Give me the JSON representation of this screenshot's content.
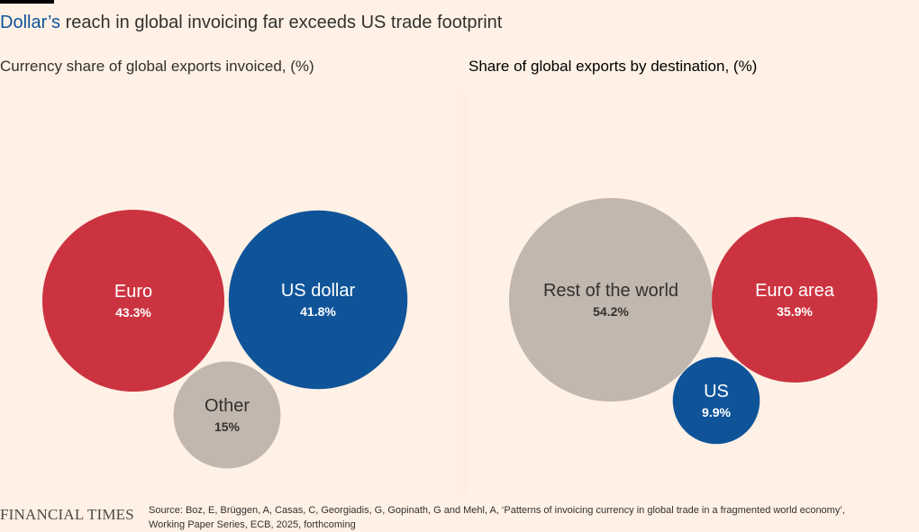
{
  "header": {
    "title_accent": "Dollar’s",
    "title_rest": " reach in global invoicing far exceeds US trade footprint"
  },
  "colors": {
    "background": "#fff1e5",
    "accent_blue": "#0f5499",
    "euro_red": "#cc3340",
    "other_grey": "#c1b7ae"
  },
  "chart_data": [
    {
      "type": "bubble",
      "title": "Currency share of global exports invoiced, (%)",
      "unit": "%",
      "series": [
        {
          "name": "Euro",
          "value": 43.3,
          "label": "43.3%",
          "color": "#cc3340"
        },
        {
          "name": "US dollar",
          "value": 41.8,
          "label": "41.8%",
          "color": "#0f5499"
        },
        {
          "name": "Other",
          "value": 15,
          "label": "15%",
          "color": "#c1b7ae"
        }
      ]
    },
    {
      "type": "bubble",
      "title": "Share of global exports by destination, (%)",
      "unit": "%",
      "series": [
        {
          "name": "Rest of the world",
          "value": 54.2,
          "label": "54.2%",
          "color": "#c1b7ae"
        },
        {
          "name": "Euro area",
          "value": 35.9,
          "label": "35.9%",
          "color": "#cc3340"
        },
        {
          "name": "US",
          "value": 9.9,
          "label": "9.9%",
          "color": "#0f5499"
        }
      ]
    }
  ],
  "footer": {
    "brand": "FINANCIAL TIMES",
    "source_line1": "Source: Boz, E, Brüggen, A, Casas, C, Georgiadis, G, Gopinath, G and Mehl, A, ‘Patterns of invoicing currency in global trade in a fragmented world economy’,",
    "source_line2": "Working Paper Series, ECB, 2025, forthcoming"
  }
}
